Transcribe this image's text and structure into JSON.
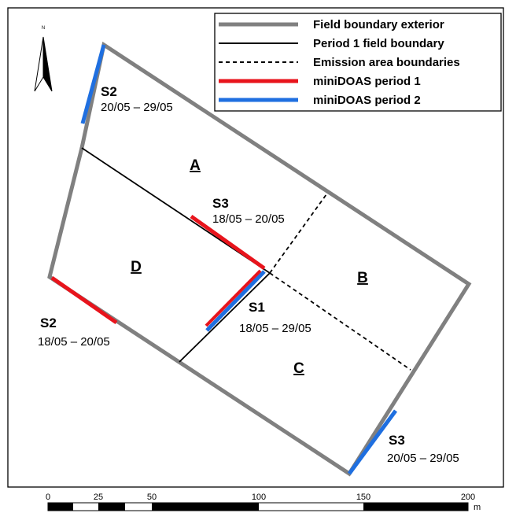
{
  "legend": {
    "items": [
      {
        "label": "Field boundary exterior",
        "style": "exterior",
        "color": "#808080"
      },
      {
        "label": "Period 1 field boundary",
        "style": "period1",
        "color": "#000000"
      },
      {
        "label": "Emission area boundaries",
        "style": "dashed",
        "color": "#000000"
      },
      {
        "label": "miniDOAS period 1",
        "style": "red",
        "color": "#e8141c"
      },
      {
        "label": "miniDOAS period 2",
        "style": "blue",
        "color": "#1f6fe0"
      }
    ]
  },
  "north_arrow": {
    "label": "N"
  },
  "areas": {
    "a": "A",
    "b": "B",
    "c": "C",
    "d": "D"
  },
  "stations": {
    "s2_p2": {
      "name": "S2",
      "dates": "20/05 – 29/05"
    },
    "s3_p1": {
      "name": "S3",
      "dates": "18/05 – 20/05"
    },
    "s1": {
      "name": "S1",
      "dates": "18/05 – 29/05"
    },
    "s2_p1": {
      "name": "S2",
      "dates": "18/05 – 20/05"
    },
    "s3_p2": {
      "name": "S3",
      "dates": "20/05 – 29/05"
    }
  },
  "scale_bar": {
    "unit": "m",
    "ticks": [
      "0",
      "25",
      "50",
      "100",
      "150",
      "200"
    ]
  },
  "colors": {
    "exterior": "#808080",
    "period1": "#000000",
    "minidoas_p1": "#e8141c",
    "minidoas_p2": "#1f6fe0"
  }
}
